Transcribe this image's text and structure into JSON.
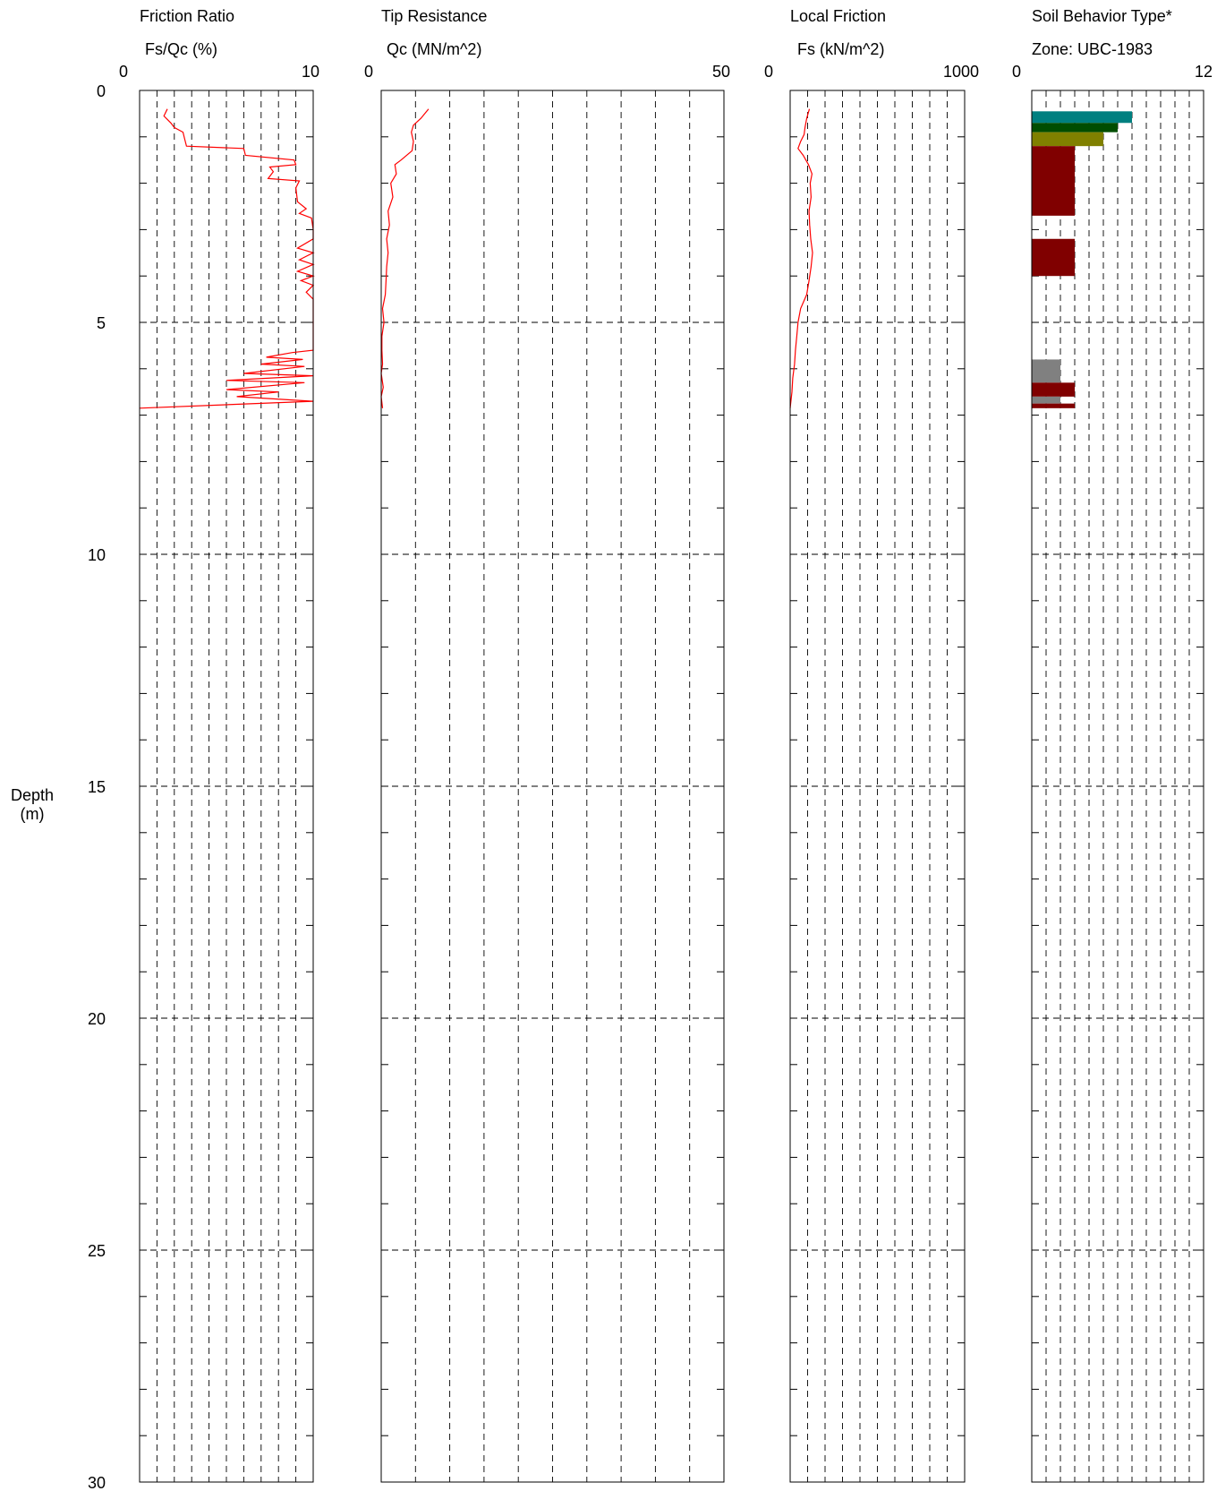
{
  "depth_label": [
    "Depth",
    "(m)"
  ],
  "chart_data": [
    {
      "type": "line",
      "panel": "friction-ratio",
      "title": "Friction Ratio",
      "xlabel": "Fs/Qc (%)",
      "ylabel": "Depth (m)",
      "xlim": [
        0,
        10
      ],
      "ylim": [
        0,
        30
      ],
      "x_tick_labels": [
        "0",
        "10"
      ],
      "y_tick_labels": [
        "0",
        "5",
        "10",
        "15",
        "20",
        "25",
        "30"
      ],
      "grid": true,
      "series_color": "#ff0000",
      "series": [
        {
          "name": "",
          "points": [
            [
              1.6,
              0.4
            ],
            [
              1.4,
              0.55
            ],
            [
              1.8,
              0.7
            ],
            [
              2.0,
              0.8
            ],
            [
              2.5,
              0.9
            ],
            [
              2.6,
              1.05
            ],
            [
              2.7,
              1.2
            ],
            [
              6.0,
              1.25
            ],
            [
              6.1,
              1.4
            ],
            [
              8.9,
              1.5
            ],
            [
              9.0,
              1.6
            ],
            [
              7.5,
              1.65
            ],
            [
              7.7,
              1.75
            ],
            [
              7.4,
              1.9
            ],
            [
              9.2,
              1.95
            ],
            [
              9.0,
              2.1
            ],
            [
              9.1,
              2.4
            ],
            [
              9.6,
              2.55
            ],
            [
              9.2,
              2.65
            ],
            [
              9.9,
              2.75
            ],
            [
              10.0,
              3.0
            ],
            [
              10.0,
              3.2
            ],
            [
              9.1,
              3.4
            ],
            [
              10.0,
              3.5
            ],
            [
              9.2,
              3.65
            ],
            [
              10.0,
              3.75
            ],
            [
              9.1,
              3.9
            ],
            [
              10.0,
              4.0
            ],
            [
              9.3,
              4.1
            ],
            [
              10.0,
              4.2
            ],
            [
              9.6,
              4.35
            ],
            [
              10.0,
              4.5
            ],
            [
              10.0,
              5.0
            ],
            [
              10.0,
              5.6
            ],
            [
              8.8,
              5.65
            ],
            [
              7.3,
              5.75
            ],
            [
              9.4,
              5.8
            ],
            [
              7.0,
              5.9
            ],
            [
              9.5,
              5.95
            ],
            [
              6.0,
              6.1
            ],
            [
              10.0,
              6.15
            ],
            [
              5.0,
              6.25
            ],
            [
              9.5,
              6.3
            ],
            [
              5.0,
              6.45
            ],
            [
              8.0,
              6.5
            ],
            [
              5.6,
              6.6
            ],
            [
              10.0,
              6.7
            ],
            [
              0.0,
              6.85
            ]
          ]
        }
      ]
    },
    {
      "type": "line",
      "panel": "tip-resistance",
      "title": "Tip Resistance",
      "xlabel": "Qc (MN/m^2)",
      "xlim": [
        0,
        50
      ],
      "ylim": [
        0,
        30
      ],
      "x_tick_labels": [
        "0",
        "50"
      ],
      "grid": true,
      "series_color": "#ff0000",
      "series": [
        {
          "name": "",
          "points": [
            [
              6.9,
              0.4
            ],
            [
              5.8,
              0.6
            ],
            [
              4.7,
              0.75
            ],
            [
              4.4,
              0.9
            ],
            [
              4.7,
              1.1
            ],
            [
              4.5,
              1.3
            ],
            [
              2.9,
              1.5
            ],
            [
              2.0,
              1.6
            ],
            [
              2.2,
              1.8
            ],
            [
              1.4,
              2.0
            ],
            [
              1.7,
              2.3
            ],
            [
              1.0,
              2.6
            ],
            [
              1.2,
              2.9
            ],
            [
              0.8,
              3.2
            ],
            [
              1.0,
              3.5
            ],
            [
              0.8,
              3.8
            ],
            [
              0.7,
              4.1
            ],
            [
              0.6,
              4.4
            ],
            [
              0.2,
              4.7
            ],
            [
              0.4,
              5.0
            ],
            [
              0.1,
              5.3
            ],
            [
              0.1,
              5.6
            ],
            [
              0.2,
              5.9
            ],
            [
              0.0,
              6.1
            ],
            [
              0.3,
              6.4
            ],
            [
              0.0,
              6.6
            ],
            [
              0.2,
              6.85
            ]
          ]
        }
      ]
    },
    {
      "type": "line",
      "panel": "local-friction",
      "title": "Local Friction",
      "xlabel": "Fs (kN/m^2)",
      "xlim": [
        0,
        1000
      ],
      "ylim": [
        0,
        30
      ],
      "x_tick_labels": [
        "0",
        "1000"
      ],
      "grid": true,
      "series_color": "#ff0000",
      "series": [
        {
          "name": "",
          "points": [
            [
              110,
              0.4
            ],
            [
              95,
              0.6
            ],
            [
              85,
              0.8
            ],
            [
              80,
              0.95
            ],
            [
              60,
              1.1
            ],
            [
              45,
              1.25
            ],
            [
              75,
              1.4
            ],
            [
              105,
              1.6
            ],
            [
              125,
              1.8
            ],
            [
              115,
              2.0
            ],
            [
              120,
              2.3
            ],
            [
              108,
              2.6
            ],
            [
              112,
              2.9
            ],
            [
              118,
              3.2
            ],
            [
              128,
              3.5
            ],
            [
              120,
              3.8
            ],
            [
              108,
              4.1
            ],
            [
              95,
              4.4
            ],
            [
              60,
              4.7
            ],
            [
              45,
              5.0
            ],
            [
              38,
              5.3
            ],
            [
              30,
              5.6
            ],
            [
              25,
              5.9
            ],
            [
              15,
              6.2
            ],
            [
              10,
              6.5
            ],
            [
              0,
              6.85
            ]
          ]
        }
      ]
    },
    {
      "type": "bar",
      "panel": "soil-behavior-type",
      "title": "Soil Behavior Type*",
      "xlabel": "Zone: UBC-1983",
      "xlim": [
        0,
        12
      ],
      "ylim": [
        0,
        30
      ],
      "x_tick_labels": [
        "0",
        "12"
      ],
      "grid": true,
      "bars": [
        {
          "top": 0.45,
          "bottom": 0.7,
          "value": 7.0,
          "color": "#008080"
        },
        {
          "top": 0.7,
          "bottom": 0.9,
          "value": 6.0,
          "color": "#004d00"
        },
        {
          "top": 0.9,
          "bottom": 1.2,
          "value": 5.0,
          "color": "#808000"
        },
        {
          "top": 1.2,
          "bottom": 2.7,
          "value": 3.0,
          "color": "#800000"
        },
        {
          "top": 3.2,
          "bottom": 4.0,
          "value": 3.0,
          "color": "#800000"
        },
        {
          "top": 5.8,
          "bottom": 6.3,
          "value": 2.0,
          "color": "#808080"
        },
        {
          "top": 6.3,
          "bottom": 6.6,
          "value": 3.0,
          "color": "#800000"
        },
        {
          "top": 6.6,
          "bottom": 6.75,
          "value": 2.0,
          "color": "#808080"
        },
        {
          "top": 6.75,
          "bottom": 6.85,
          "value": 3.0,
          "color": "#800000"
        }
      ]
    }
  ]
}
